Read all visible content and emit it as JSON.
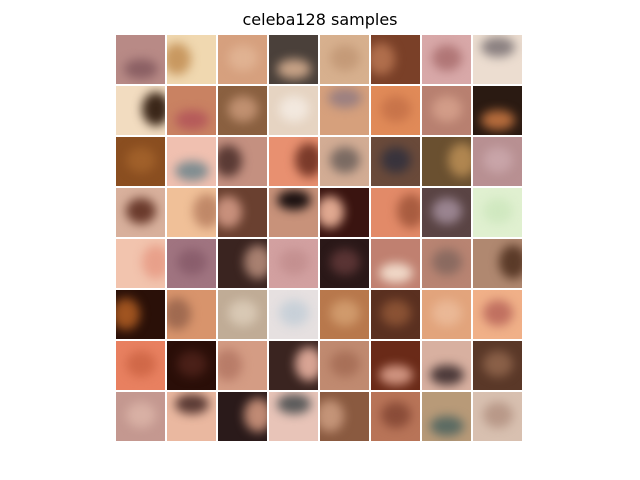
{
  "figure": {
    "title": "celeba128 samples"
  },
  "grid": {
    "rows": 8,
    "cols": 8,
    "tiles": [
      {
        "bg": "#b88a86",
        "blob": "#8a5f63",
        "blob_pos": "low"
      },
      {
        "bg": "#f0d8b0",
        "blob": "#c89860",
        "blob_pos": "left"
      },
      {
        "bg": "#d6a07e",
        "blob": "#e0b292",
        "blob_pos": "center"
      },
      {
        "bg": "#4a403a",
        "blob": "#c7a286",
        "blob_pos": "low"
      },
      {
        "bg": "#d7b08e",
        "blob": "#c49a78",
        "blob_pos": "center"
      },
      {
        "bg": "#7a4028",
        "blob": "#b06e4c",
        "blob_pos": "left"
      },
      {
        "bg": "#d8a8a8",
        "blob": "#b07676",
        "blob_pos": "center"
      },
      {
        "bg": "#ecddd0",
        "blob": "#8a8080",
        "blob_pos": "high"
      },
      {
        "bg": "#f2dcc0",
        "blob": "#3a2618",
        "blob_pos": "right"
      },
      {
        "bg": "#c98262",
        "blob": "#b55a5a",
        "blob_pos": "low"
      },
      {
        "bg": "#8a6040",
        "blob": "#c09070",
        "blob_pos": "center"
      },
      {
        "bg": "#e6d4c2",
        "blob": "#f2e8de",
        "blob_pos": "center"
      },
      {
        "bg": "#d6a07c",
        "blob": "#9c8080",
        "blob_pos": "high"
      },
      {
        "bg": "#e08a58",
        "blob": "#c8744a",
        "blob_pos": "center"
      },
      {
        "bg": "#b88070",
        "blob": "#d29c88",
        "blob_pos": "center"
      },
      {
        "bg": "#2a1a12",
        "blob": "#b66c3c",
        "blob_pos": "low"
      },
      {
        "bg": "#8a4e20",
        "blob": "#a0602a",
        "blob_pos": "center"
      },
      {
        "bg": "#f0c0b0",
        "blob": "#7e8c90",
        "blob_pos": "low"
      },
      {
        "bg": "#c49080",
        "blob": "#5a3a34",
        "blob_pos": "left"
      },
      {
        "bg": "#e89070",
        "blob": "#7a3a2a",
        "blob_pos": "right"
      },
      {
        "bg": "#d2ac94",
        "blob": "#7a6a62",
        "blob_pos": "center"
      },
      {
        "bg": "#6a4a3a",
        "blob": "#38333c",
        "blob_pos": "center"
      },
      {
        "bg": "#6a5030",
        "blob": "#b08650",
        "blob_pos": "right"
      },
      {
        "bg": "#b89092",
        "blob": "#c8a4a8",
        "blob_pos": "center"
      },
      {
        "bg": "#d8b09c",
        "blob": "#6a3a2c",
        "blob_pos": "center"
      },
      {
        "bg": "#f0c098",
        "blob": "#c08868",
        "blob_pos": "right"
      },
      {
        "bg": "#6a4030",
        "blob": "#c8907c",
        "blob_pos": "left"
      },
      {
        "bg": "#c8927a",
        "blob": "#1a1010",
        "blob_pos": "high"
      },
      {
        "bg": "#3a1410",
        "blob": "#e0a890",
        "blob_pos": "left"
      },
      {
        "bg": "#e28a68",
        "blob": "#a85c40",
        "blob_pos": "right"
      },
      {
        "bg": "#5a4444",
        "blob": "#9a8490",
        "blob_pos": "center"
      },
      {
        "bg": "#e0f0d0",
        "blob": "#d0e8c0",
        "blob_pos": "center"
      },
      {
        "bg": "#f2c4ae",
        "blob": "#e8a08a",
        "blob_pos": "right"
      },
      {
        "bg": "#a07480",
        "blob": "#8a5e6c",
        "blob_pos": "center"
      },
      {
        "bg": "#3a2420",
        "blob": "#a88070",
        "blob_pos": "right"
      },
      {
        "bg": "#d2a0a0",
        "blob": "#c49090",
        "blob_pos": "center"
      },
      {
        "bg": "#2a1818",
        "blob": "#5a3434",
        "blob_pos": "center"
      },
      {
        "bg": "#c08070",
        "blob": "#f0d8c8",
        "blob_pos": "low"
      },
      {
        "bg": "#b88472",
        "blob": "#8a6a60",
        "blob_pos": "center"
      },
      {
        "bg": "#b08870",
        "blob": "#5a3a28",
        "blob_pos": "right"
      },
      {
        "bg": "#2a1008",
        "blob": "#a05420",
        "blob_pos": "left"
      },
      {
        "bg": "#d8946c",
        "blob": "#a06a50",
        "blob_pos": "left"
      },
      {
        "bg": "#c0ac96",
        "blob": "#d8c8b4",
        "blob_pos": "center"
      },
      {
        "bg": "#e6e0e0",
        "blob": "#c8d0d8",
        "blob_pos": "center"
      },
      {
        "bg": "#b8784c",
        "blob": "#d09a6c",
        "blob_pos": "center"
      },
      {
        "bg": "#5a3020",
        "blob": "#8a5234",
        "blob_pos": "center"
      },
      {
        "bg": "#e2a47c",
        "blob": "#eab896",
        "blob_pos": "center"
      },
      {
        "bg": "#f0b088",
        "blob": "#c07060",
        "blob_pos": "center"
      },
      {
        "bg": "#e88060",
        "blob": "#d06848",
        "blob_pos": "center"
      },
      {
        "bg": "#2a0e08",
        "blob": "#4a2018",
        "blob_pos": "center"
      },
      {
        "bg": "#d49c84",
        "blob": "#b87c68",
        "blob_pos": "left"
      },
      {
        "bg": "#3a2420",
        "blob": "#d8a494",
        "blob_pos": "right"
      },
      {
        "bg": "#c08a70",
        "blob": "#a87058",
        "blob_pos": "center"
      },
      {
        "bg": "#6a2a18",
        "blob": "#d09480",
        "blob_pos": "low"
      },
      {
        "bg": "#d8b0a0",
        "blob": "#4a3838",
        "blob_pos": "low"
      },
      {
        "bg": "#5a3828",
        "blob": "#8a6048",
        "blob_pos": "center"
      },
      {
        "bg": "#c49890",
        "blob": "#d8b0a4",
        "blob_pos": "center"
      },
      {
        "bg": "#eab8a0",
        "blob": "#5a3a34",
        "blob_pos": "high"
      },
      {
        "bg": "#2a1a1a",
        "blob": "#c08a74",
        "blob_pos": "right"
      },
      {
        "bg": "#e8c4b8",
        "blob": "#5a5a5a",
        "blob_pos": "high"
      },
      {
        "bg": "#8a5a40",
        "blob": "#c49478",
        "blob_pos": "left"
      },
      {
        "bg": "#b87458",
        "blob": "#8a4c38",
        "blob_pos": "center"
      },
      {
        "bg": "#b89a78",
        "blob": "#5a6a62",
        "blob_pos": "low"
      },
      {
        "bg": "#d8c0b0",
        "blob": "#b89888",
        "blob_pos": "center"
      }
    ]
  }
}
